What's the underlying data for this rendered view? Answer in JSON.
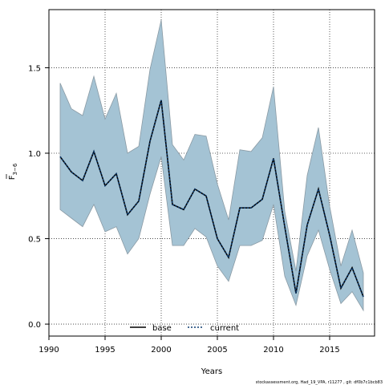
{
  "chart_data": {
    "type": "area",
    "xlabel": "Years",
    "ylabel_main": "F",
    "ylabel_sub": "3−6",
    "xlim": [
      1990,
      2019
    ],
    "ylim": [
      -0.07,
      1.84
    ],
    "x_ticks": [
      1990,
      1995,
      2000,
      2005,
      2010,
      2015
    ],
    "y_ticks": [
      0.0,
      0.5,
      1.0,
      1.5
    ],
    "y_tick_labels": [
      "0.0",
      "0.5",
      "1.0",
      "1.5"
    ],
    "grid": true,
    "legend_position": "bottom-left",
    "x": [
      1991,
      1992,
      1993,
      1994,
      1995,
      1996,
      1997,
      1998,
      1999,
      2000,
      2001,
      2002,
      2003,
      2004,
      2005,
      2006,
      2007,
      2008,
      2009,
      2010,
      2011,
      2012,
      2013,
      2014,
      2015,
      2016,
      2017,
      2018
    ],
    "series": [
      {
        "name": "base",
        "style": "solid",
        "color": "#000000",
        "values": [
          0.98,
          0.89,
          0.84,
          1.01,
          0.81,
          0.88,
          0.64,
          0.72,
          1.07,
          1.31,
          0.7,
          0.67,
          0.79,
          0.75,
          0.5,
          0.39,
          0.68,
          0.68,
          0.73,
          0.97,
          0.57,
          0.18,
          0.58,
          0.79,
          0.52,
          0.21,
          0.33,
          0.16
        ]
      },
      {
        "name": "current",
        "style": "dotted",
        "color": "#0d3c70",
        "values": [
          0.98,
          0.89,
          0.84,
          1.01,
          0.81,
          0.88,
          0.64,
          0.72,
          1.07,
          1.31,
          0.7,
          0.67,
          0.79,
          0.75,
          0.5,
          0.39,
          0.68,
          0.68,
          0.73,
          0.97,
          0.57,
          0.18,
          0.58,
          0.79,
          0.52,
          0.21,
          0.33,
          0.16
        ]
      }
    ],
    "band": {
      "color": "#a4c3d4",
      "upper": [
        1.41,
        1.26,
        1.22,
        1.45,
        1.2,
        1.35,
        1.0,
        1.04,
        1.49,
        1.78,
        1.05,
        0.96,
        1.11,
        1.1,
        0.82,
        0.61,
        1.02,
        1.01,
        1.09,
        1.39,
        0.66,
        0.31,
        0.87,
        1.15,
        0.69,
        0.34,
        0.55,
        0.3
      ],
      "lower": [
        0.67,
        0.62,
        0.57,
        0.7,
        0.54,
        0.57,
        0.41,
        0.5,
        0.76,
        0.98,
        0.46,
        0.46,
        0.56,
        0.51,
        0.34,
        0.25,
        0.46,
        0.46,
        0.49,
        0.7,
        0.28,
        0.11,
        0.4,
        0.55,
        0.32,
        0.12,
        0.19,
        0.08
      ]
    },
    "footer": "stockassessment.org, Had_19_VPA, r11277 , git: df0b7c1bcb83"
  }
}
